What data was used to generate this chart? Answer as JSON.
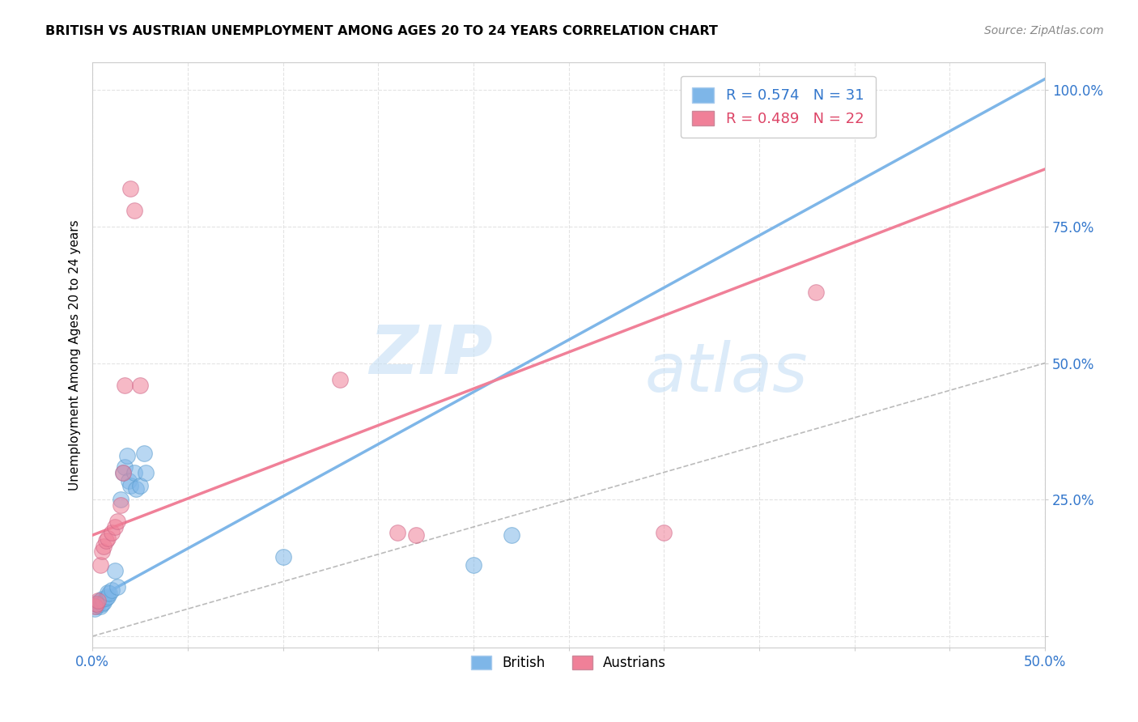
{
  "title": "BRITISH VS AUSTRIAN UNEMPLOYMENT AMONG AGES 20 TO 24 YEARS CORRELATION CHART",
  "source": "Source: ZipAtlas.com",
  "ylabel": "Unemployment Among Ages 20 to 24 years",
  "xlim": [
    0,
    0.5
  ],
  "ylim": [
    -0.02,
    1.05
  ],
  "xticks": [
    0.0,
    0.05,
    0.1,
    0.15,
    0.2,
    0.25,
    0.3,
    0.35,
    0.4,
    0.45,
    0.5
  ],
  "yticks": [
    0.0,
    0.25,
    0.5,
    0.75,
    1.0
  ],
  "xtick_labels_show": [
    "0.0%",
    "",
    "",
    "",
    "",
    "",
    "",
    "",
    "",
    "",
    "50.0%"
  ],
  "ytick_labels_show": [
    "",
    "25.0%",
    "50.0%",
    "75.0%",
    "100.0%"
  ],
  "british_color": "#7EB6E8",
  "austrian_color": "#F08098",
  "british_R": 0.574,
  "british_N": 31,
  "austrian_R": 0.489,
  "austrian_N": 22,
  "watermark_zip": "ZIP",
  "watermark_atlas": "atlas",
  "british_points": [
    [
      0.001,
      0.05
    ],
    [
      0.002,
      0.055
    ],
    [
      0.002,
      0.06
    ],
    [
      0.003,
      0.058
    ],
    [
      0.003,
      0.062
    ],
    [
      0.004,
      0.055
    ],
    [
      0.004,
      0.065
    ],
    [
      0.005,
      0.06
    ],
    [
      0.005,
      0.068
    ],
    [
      0.006,
      0.063
    ],
    [
      0.007,
      0.07
    ],
    [
      0.008,
      0.072
    ],
    [
      0.008,
      0.08
    ],
    [
      0.009,
      0.078
    ],
    [
      0.01,
      0.085
    ],
    [
      0.012,
      0.12
    ],
    [
      0.013,
      0.09
    ],
    [
      0.015,
      0.25
    ],
    [
      0.016,
      0.3
    ],
    [
      0.017,
      0.31
    ],
    [
      0.018,
      0.33
    ],
    [
      0.019,
      0.285
    ],
    [
      0.02,
      0.275
    ],
    [
      0.022,
      0.3
    ],
    [
      0.023,
      0.27
    ],
    [
      0.025,
      0.275
    ],
    [
      0.027,
      0.335
    ],
    [
      0.028,
      0.3
    ],
    [
      0.1,
      0.145
    ],
    [
      0.2,
      0.13
    ],
    [
      0.22,
      0.185
    ]
  ],
  "austrian_points": [
    [
      0.001,
      0.055
    ],
    [
      0.002,
      0.06
    ],
    [
      0.003,
      0.065
    ],
    [
      0.004,
      0.13
    ],
    [
      0.005,
      0.155
    ],
    [
      0.006,
      0.165
    ],
    [
      0.007,
      0.175
    ],
    [
      0.008,
      0.18
    ],
    [
      0.01,
      0.19
    ],
    [
      0.012,
      0.2
    ],
    [
      0.013,
      0.21
    ],
    [
      0.015,
      0.24
    ],
    [
      0.016,
      0.3
    ],
    [
      0.017,
      0.46
    ],
    [
      0.02,
      0.82
    ],
    [
      0.022,
      0.78
    ],
    [
      0.025,
      0.46
    ],
    [
      0.13,
      0.47
    ],
    [
      0.16,
      0.19
    ],
    [
      0.17,
      0.185
    ],
    [
      0.3,
      0.19
    ],
    [
      0.38,
      0.63
    ]
  ],
  "british_reg": [
    0.0,
    0.5,
    0.065,
    1.02
  ],
  "austrian_reg": [
    0.0,
    0.5,
    0.185,
    0.855
  ],
  "ref_line": [
    0.0,
    1.0,
    0.0,
    1.0
  ]
}
